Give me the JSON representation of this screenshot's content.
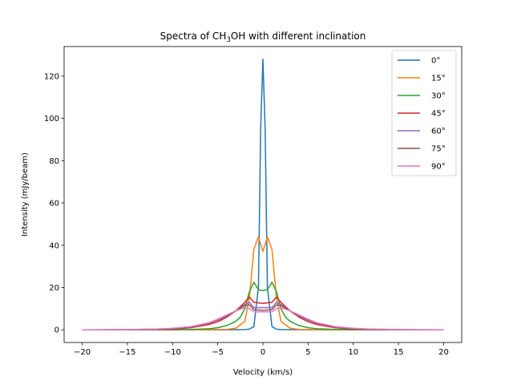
{
  "chart_data": {
    "type": "line",
    "title": "Spectra of CH₃OH with different inclination",
    "xlabel": "Velocity (km/s)",
    "ylabel": "Intensity (mJy/beam)",
    "xlim": [
      -22,
      22
    ],
    "ylim": [
      -6,
      134
    ],
    "xticks": [
      -20,
      -15,
      -10,
      -5,
      0,
      5,
      10,
      15,
      20
    ],
    "xtick_labels": [
      "−20",
      "−15",
      "−10",
      "−5",
      "0",
      "5",
      "10",
      "15",
      "20"
    ],
    "yticks": [
      0,
      20,
      40,
      60,
      80,
      100,
      120
    ],
    "ytick_labels": [
      "0",
      "20",
      "40",
      "60",
      "80",
      "100",
      "120"
    ],
    "grid": false,
    "legend_position": "top-right",
    "series": [
      {
        "name": "0°",
        "color": "#1f77b4",
        "x": [
          -20,
          -10,
          -5,
          -2,
          -1.5,
          -1,
          -0.5,
          -0.25,
          0,
          0.25,
          0.5,
          1,
          1.5,
          2,
          5,
          10,
          20
        ],
        "y": [
          0,
          0,
          0,
          0.1,
          0.3,
          1.5,
          20,
          95,
          128,
          95,
          20,
          1.5,
          0.3,
          0.1,
          0,
          0,
          0
        ]
      },
      {
        "name": "15°",
        "color": "#ff7f0e",
        "x": [
          -20,
          -10,
          -7,
          -5,
          -4,
          -3,
          -2,
          -1.5,
          -1,
          -0.5,
          0,
          0.5,
          1,
          1.5,
          2,
          3,
          4,
          5,
          7,
          10,
          20
        ],
        "y": [
          0,
          0,
          0,
          0.1,
          0.2,
          0.8,
          4,
          15,
          38,
          44,
          37,
          44,
          38,
          15,
          4,
          0.8,
          0.2,
          0.1,
          0,
          0,
          0
        ]
      },
      {
        "name": "30°",
        "color": "#2ca02c",
        "x": [
          -20,
          -12,
          -8,
          -6,
          -5,
          -4,
          -3,
          -2.5,
          -2,
          -1.5,
          -1,
          -0.5,
          0,
          0.5,
          1,
          1.5,
          2,
          2.5,
          3,
          4,
          5,
          6,
          8,
          12,
          20
        ],
        "y": [
          0,
          0,
          0.2,
          0.5,
          1,
          2,
          4,
          6,
          10,
          18,
          22.5,
          19,
          18.5,
          19,
          22.5,
          18,
          10,
          6,
          4,
          2,
          1,
          0.5,
          0.2,
          0,
          0
        ]
      },
      {
        "name": "45°",
        "color": "#d62728",
        "x": [
          -20,
          -15,
          -12,
          -10,
          -8,
          -6,
          -5,
          -4,
          -3,
          -2,
          -1.5,
          -1,
          0,
          1,
          1.5,
          2,
          3,
          4,
          5,
          6,
          8,
          10,
          12,
          15,
          20
        ],
        "y": [
          0,
          0,
          0.1,
          0.3,
          1,
          2.5,
          3.8,
          6,
          9,
          13,
          15.5,
          13,
          12.5,
          13,
          15.5,
          13,
          9,
          6,
          3.8,
          2.5,
          1,
          0.3,
          0.1,
          0,
          0
        ]
      },
      {
        "name": "60°",
        "color": "#9467bd",
        "x": [
          -20,
          -15,
          -12,
          -10,
          -8,
          -6,
          -5,
          -4,
          -3,
          -2,
          -1.5,
          -1,
          0,
          1,
          1.5,
          2,
          3,
          4,
          5,
          6,
          8,
          10,
          12,
          15,
          20
        ],
        "y": [
          0,
          0,
          0.2,
          0.5,
          1.2,
          3,
          4.5,
          6.5,
          9,
          12,
          13,
          10.5,
          10.5,
          10.5,
          13,
          12,
          9,
          6.5,
          4.5,
          3,
          1.2,
          0.5,
          0.2,
          0,
          0
        ]
      },
      {
        "name": "75°",
        "color": "#8c564b",
        "x": [
          -20,
          -15,
          -12,
          -10,
          -8,
          -6,
          -5,
          -4,
          -3,
          -2,
          -1.5,
          -1,
          0,
          1,
          1.5,
          2,
          3,
          4,
          5,
          6,
          8,
          10,
          12,
          15,
          20
        ],
        "y": [
          0,
          0.1,
          0.3,
          0.6,
          1.4,
          3.2,
          4.8,
          6.8,
          9,
          11.5,
          11.8,
          9.5,
          9.3,
          9.5,
          11.8,
          11.5,
          9,
          6.8,
          4.8,
          3.2,
          1.4,
          0.6,
          0.3,
          0.1,
          0
        ]
      },
      {
        "name": "90°",
        "color": "#e377c2",
        "x": [
          -20,
          -15,
          -12,
          -10,
          -8,
          -6,
          -5,
          -4,
          -3,
          -2,
          -1.5,
          -1,
          0,
          1,
          1.5,
          2,
          3,
          4,
          5,
          6,
          8,
          10,
          12,
          15,
          20
        ],
        "y": [
          0,
          0.1,
          0.3,
          0.7,
          1.5,
          3.3,
          5,
          7,
          9,
          10.5,
          10,
          8.5,
          8.5,
          8.5,
          10,
          10.5,
          9,
          7,
          5,
          3.3,
          1.5,
          0.7,
          0.3,
          0.1,
          0
        ]
      }
    ]
  }
}
